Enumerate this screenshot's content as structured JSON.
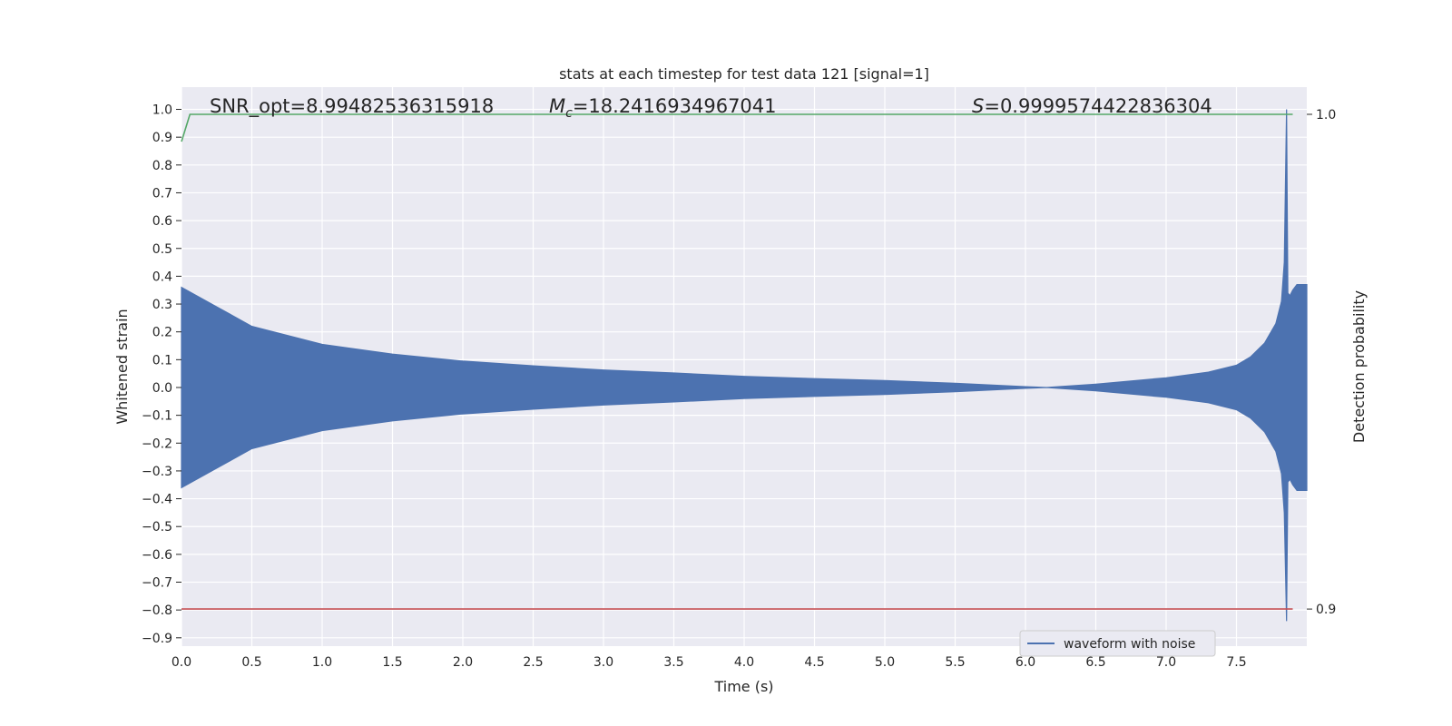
{
  "chart_data": {
    "type": "line",
    "title": "stats at each timestep for test data 121 [signal=1]",
    "xlabel": "Time (s)",
    "ylabel": "Whitened strain",
    "y2label": "Detection probability",
    "xlim": [
      0.0,
      8.0
    ],
    "ylim": [
      -0.93,
      1.08
    ],
    "y2lim": [
      0.8925,
      1.0055
    ],
    "x_ticks": [
      "0.0",
      "0.5",
      "1.0",
      "1.5",
      "2.0",
      "2.5",
      "3.0",
      "3.5",
      "4.0",
      "4.5",
      "5.0",
      "5.5",
      "6.0",
      "6.5",
      "7.0",
      "7.5"
    ],
    "y_ticks": [
      "1.0",
      "0.9",
      "0.8",
      "0.7",
      "0.6",
      "0.5",
      "0.4",
      "0.3",
      "0.2",
      "0.1",
      "0.0",
      "−0.1",
      "−0.2",
      "−0.3",
      "−0.4",
      "−0.5",
      "−0.6",
      "−0.7",
      "−0.8",
      "−0.9"
    ],
    "y2_ticks": [
      "1.0",
      "0.9"
    ],
    "grid": true,
    "annotations": [
      {
        "prefix": "SNR_opt=8.99482536315918",
        "symbol": "",
        "sub": "",
        "value": ""
      },
      {
        "prefix": "",
        "symbol": "M",
        "sub": "c",
        "value": "=18.2416934967041"
      },
      {
        "prefix": "",
        "symbol": "S",
        "sub": "",
        "value": "=0.9999574422836304"
      }
    ],
    "legend": {
      "position": "bottom-right",
      "entries": [
        "waveform with noise"
      ]
    },
    "series": [
      {
        "name": "waveform with noise",
        "color": "#4c72b0",
        "kind": "envelope-filled",
        "x": [
          0.0,
          0.25,
          0.5,
          1.0,
          1.5,
          2.0,
          2.5,
          3.0,
          3.5,
          4.0,
          4.5,
          5.0,
          5.5,
          6.0,
          6.15,
          6.5,
          7.0,
          7.3,
          7.5,
          7.6,
          7.7,
          7.78,
          7.82,
          7.84,
          7.856,
          7.865,
          7.88,
          7.9,
          7.93,
          8.0
        ],
        "upper": [
          0.36,
          0.29,
          0.22,
          0.155,
          0.12,
          0.095,
          0.078,
          0.063,
          0.052,
          0.04,
          0.032,
          0.025,
          0.015,
          0.003,
          0.0,
          0.012,
          0.035,
          0.055,
          0.08,
          0.11,
          0.16,
          0.23,
          0.31,
          0.45,
          1.0,
          0.34,
          0.33,
          0.35,
          0.37,
          0.37
        ],
        "lower": [
          -0.36,
          -0.29,
          -0.22,
          -0.155,
          -0.12,
          -0.095,
          -0.078,
          -0.063,
          -0.052,
          -0.04,
          -0.032,
          -0.025,
          -0.015,
          -0.003,
          0.0,
          -0.012,
          -0.035,
          -0.055,
          -0.08,
          -0.11,
          -0.16,
          -0.23,
          -0.31,
          -0.45,
          -0.84,
          -0.34,
          -0.33,
          -0.35,
          -0.37,
          -0.37
        ]
      },
      {
        "name": "",
        "color": "#55a868",
        "axis": "right",
        "x": [
          0.0,
          0.06,
          7.9
        ],
        "values": [
          0.9945,
          1.0,
          1.0
        ]
      },
      {
        "name": "",
        "color": "#c44e52",
        "axis": "right",
        "x": [
          0.0,
          7.9
        ],
        "values": [
          0.9,
          0.9
        ]
      }
    ]
  }
}
